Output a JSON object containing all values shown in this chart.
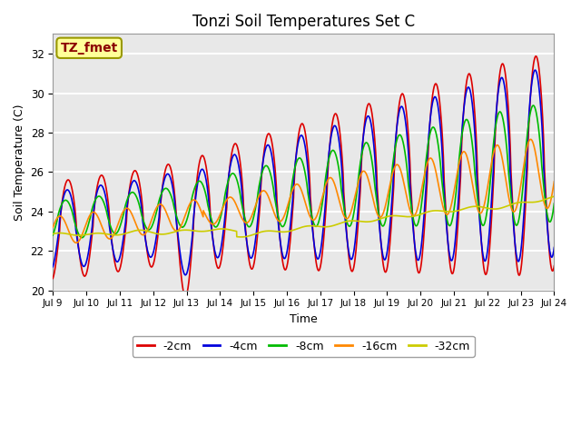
{
  "title": "Tonzi Soil Temperatures Set C",
  "xlabel": "Time",
  "ylabel": "Soil Temperature (C)",
  "ylim": [
    20,
    33
  ],
  "annotation_text": "TZ_fmet",
  "annotation_color": "#8B0000",
  "annotation_bg": "#FFFF99",
  "annotation_border": "#999900",
  "series": [
    {
      "label": "-2cm",
      "color": "#DD0000",
      "lw": 1.2
    },
    {
      "label": "-4cm",
      "color": "#0000DD",
      "lw": 1.2
    },
    {
      "label": "-8cm",
      "color": "#00BB00",
      "lw": 1.2
    },
    {
      "label": "-16cm",
      "color": "#FF8800",
      "lw": 1.2
    },
    {
      "label": "-32cm",
      "color": "#CCCC00",
      "lw": 1.2
    }
  ],
  "plot_bg": "#E8E8E8",
  "n_days": 15.0,
  "title_fontsize": 12,
  "axis_fontsize": 9,
  "legend_fontsize": 9,
  "tick_labels": [
    "Jul 9",
    "Jul 10",
    "Jul 11",
    "Jul 12",
    "Jul 13",
    "Jul 14",
    "Jul 15",
    "Jul 16",
    "Jul 17",
    "Jul 18",
    "Jul 19",
    "Jul 20",
    "Jul 21",
    "Jul 22",
    "Jul 23",
    "Jul 24"
  ]
}
